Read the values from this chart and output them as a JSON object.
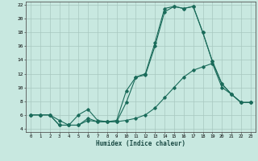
{
  "xlabel": "Humidex (Indice chaleur)",
  "xlim": [
    -0.5,
    23.5
  ],
  "ylim": [
    3.5,
    22.5
  ],
  "yticks": [
    4,
    6,
    8,
    10,
    12,
    14,
    16,
    18,
    20,
    22
  ],
  "xticks": [
    0,
    1,
    2,
    3,
    4,
    5,
    6,
    7,
    8,
    9,
    10,
    11,
    12,
    13,
    14,
    15,
    16,
    17,
    18,
    19,
    20,
    21,
    22,
    23
  ],
  "bg_color": "#c8e8e0",
  "grid_color": "#a8c8c0",
  "line_color": "#1a6b5a",
  "line1_x": [
    0,
    1,
    2,
    3,
    4,
    5,
    6,
    7,
    8,
    9,
    10,
    11,
    12,
    13,
    14,
    15,
    16,
    17,
    18,
    19,
    20,
    21,
    22,
    23
  ],
  "line1_y": [
    6.0,
    6.0,
    6.0,
    5.2,
    4.5,
    6.0,
    6.8,
    5.2,
    5.0,
    5.0,
    7.8,
    11.5,
    12.0,
    16.5,
    21.5,
    21.8,
    21.5,
    21.8,
    18.0,
    13.8,
    10.5,
    9.0,
    7.8,
    7.8
  ],
  "line2_x": [
    0,
    1,
    2,
    3,
    4,
    5,
    6,
    7,
    8,
    9,
    10,
    11,
    12,
    13,
    14,
    15,
    16,
    17,
    18,
    19,
    20,
    21,
    22,
    23
  ],
  "line2_y": [
    6.0,
    6.0,
    6.0,
    4.5,
    4.5,
    4.5,
    5.5,
    5.0,
    5.0,
    5.2,
    9.5,
    11.5,
    11.8,
    16.0,
    21.0,
    21.8,
    21.5,
    21.8,
    18.0,
    13.8,
    10.5,
    9.0,
    7.8,
    7.8
  ],
  "line3_x": [
    0,
    1,
    2,
    3,
    4,
    5,
    6,
    7,
    8,
    9,
    10,
    11,
    12,
    13,
    14,
    15,
    16,
    17,
    18,
    19,
    20,
    21,
    22,
    23
  ],
  "line3_y": [
    6.0,
    6.0,
    6.0,
    4.5,
    4.5,
    4.5,
    5.2,
    5.0,
    5.0,
    5.0,
    5.2,
    5.5,
    6.0,
    7.0,
    8.5,
    10.0,
    11.5,
    12.5,
    13.0,
    13.5,
    10.0,
    9.0,
    7.8,
    7.8
  ]
}
